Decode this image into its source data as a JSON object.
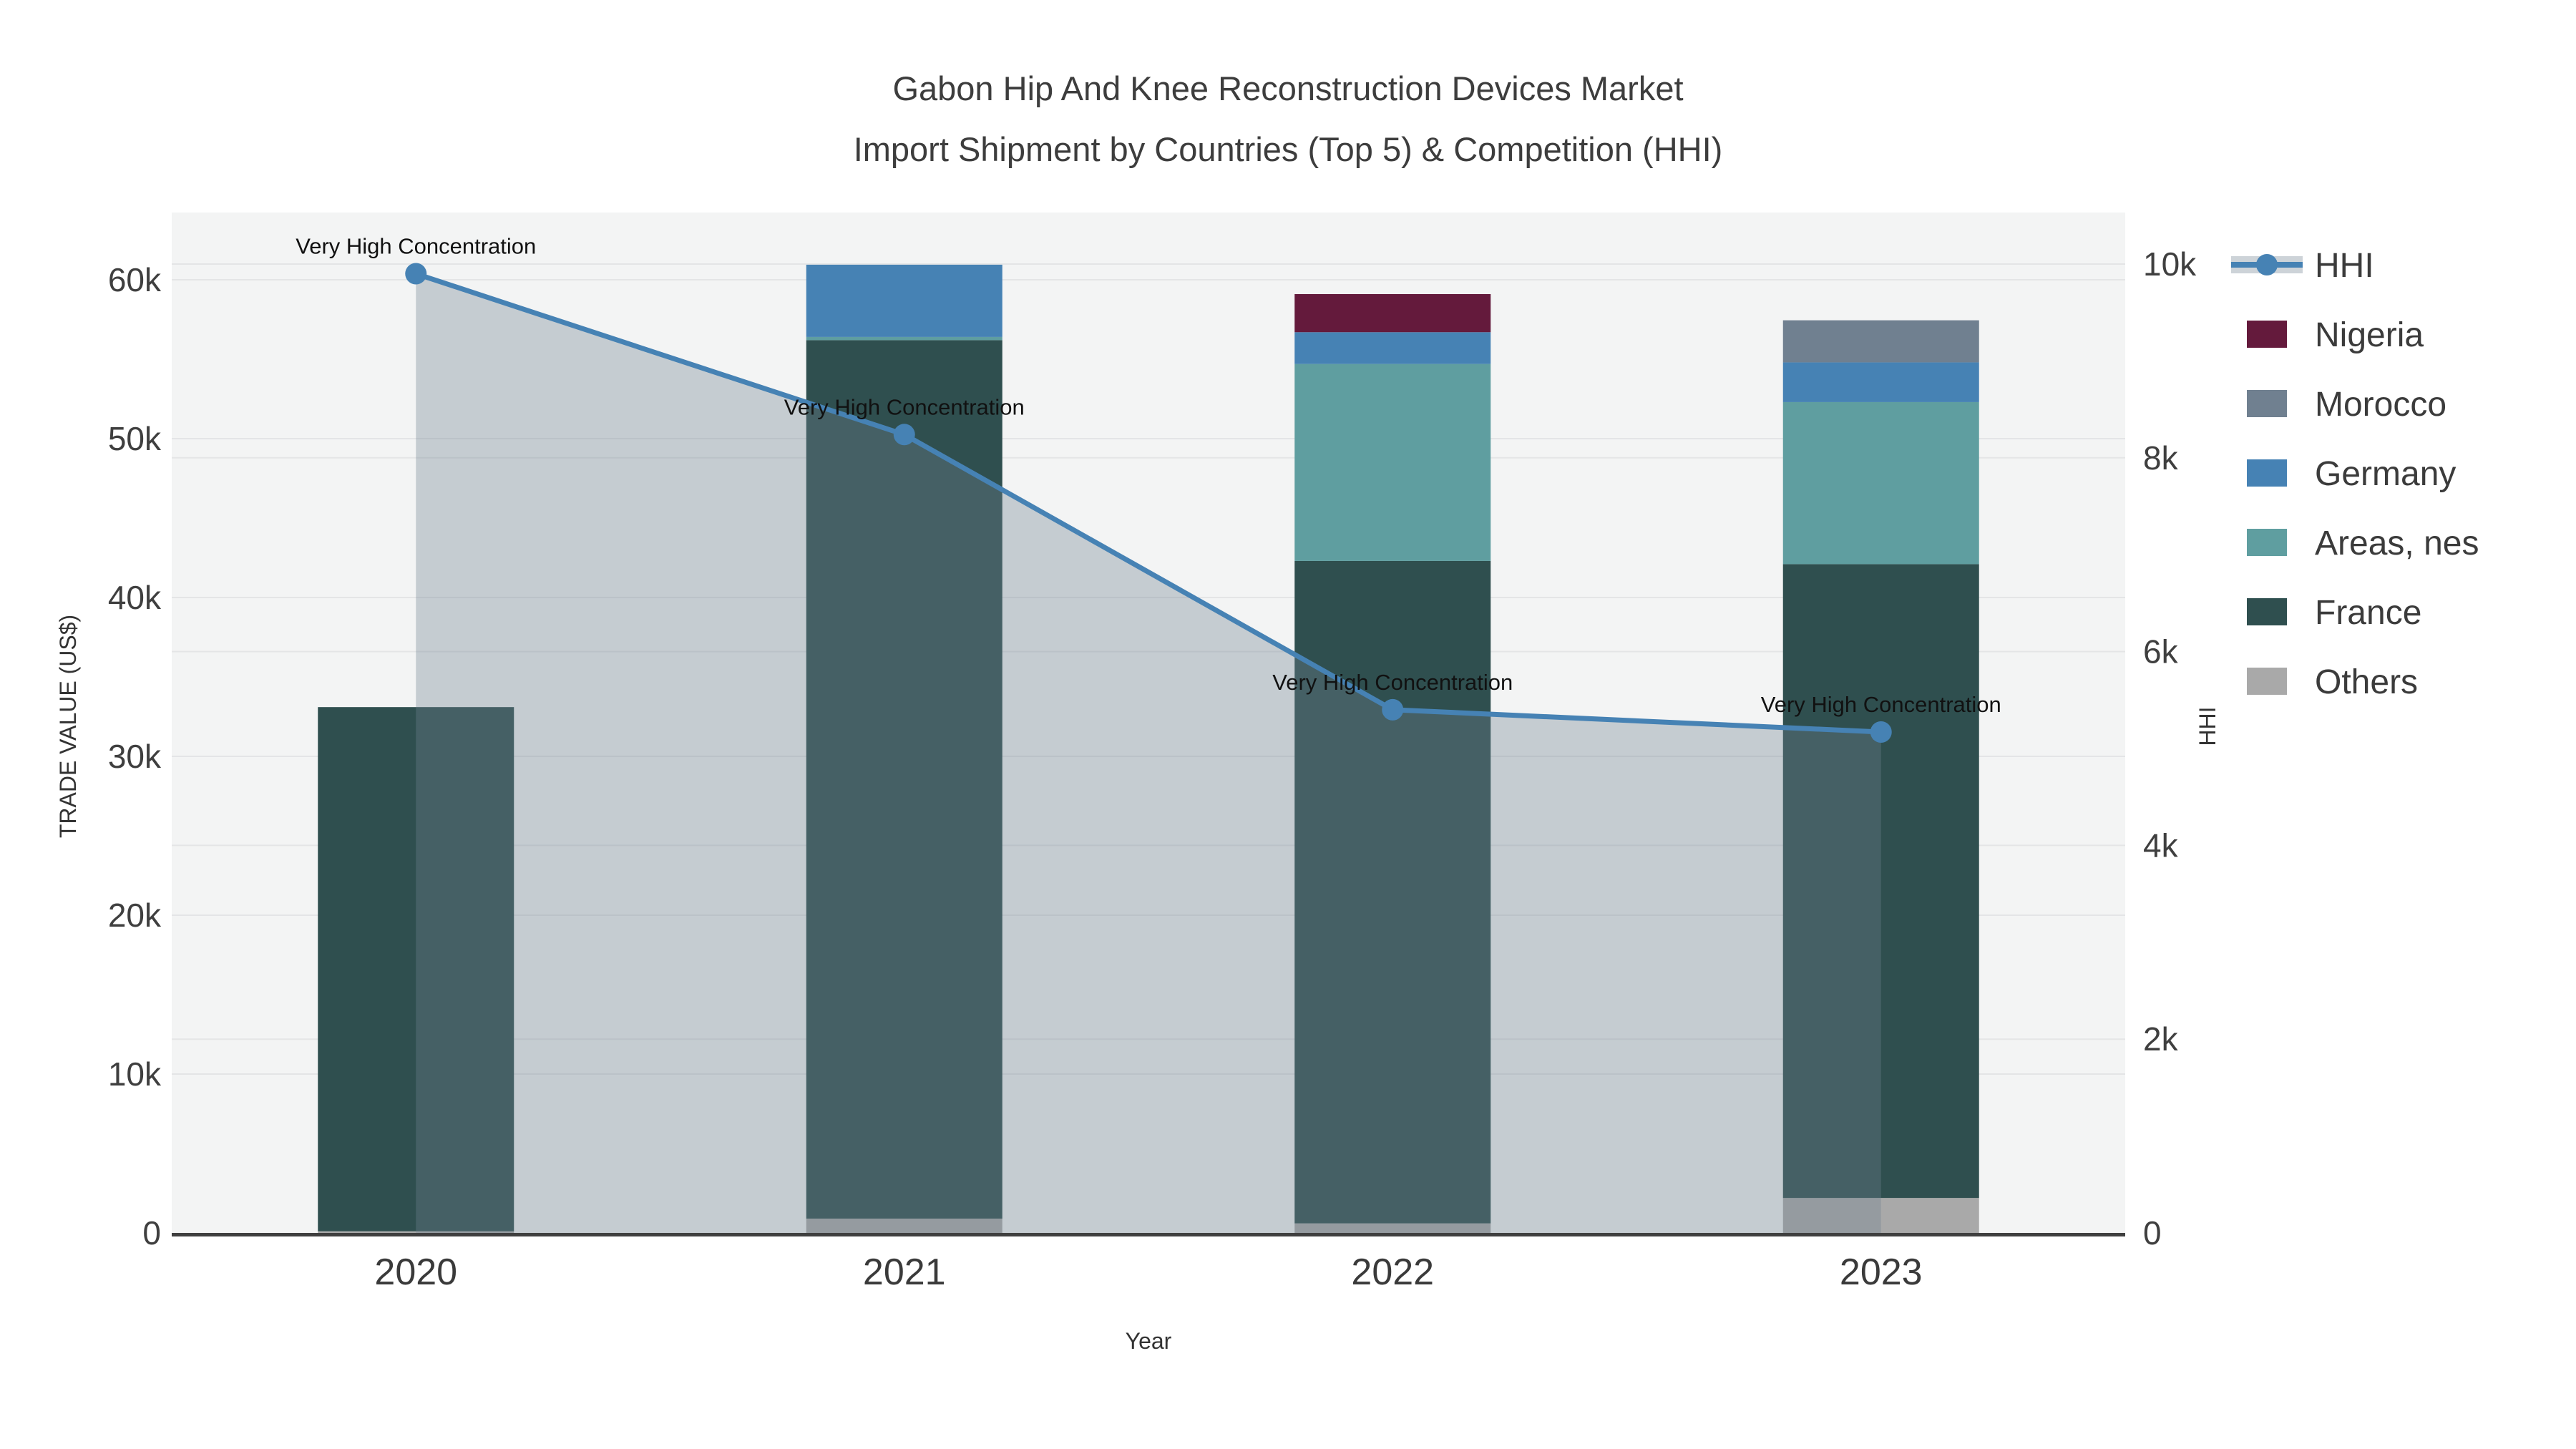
{
  "title": {
    "line1": "Gabon Hip And Knee Reconstruction Devices Market",
    "line2": "Import Shipment by Countries (Top 5) & Competition (HHI)"
  },
  "axes": {
    "left": {
      "title": "TRADE VALUE (US$)",
      "tick_labels": [
        "0",
        "10k",
        "20k",
        "30k",
        "40k",
        "50k",
        "60k"
      ],
      "tick_values": [
        0,
        10000,
        20000,
        30000,
        40000,
        50000,
        60000
      ],
      "max": 60000
    },
    "right": {
      "title": "HHI",
      "tick_labels": [
        "0",
        "2k",
        "4k",
        "6k",
        "8k",
        "10k"
      ],
      "tick_values": [
        0,
        2000,
        4000,
        6000,
        8000,
        10000
      ],
      "max": 10000
    },
    "x": {
      "title": "Year",
      "categories": [
        "2020",
        "2021",
        "2022",
        "2023"
      ]
    }
  },
  "annotation_text": "Very High Concentration",
  "colors": {
    "plot_bg": "#f3f4f4",
    "gridline": "#e4e5e6",
    "axis_line": "#3f3f3f",
    "hhi_line": "#4682B4",
    "hhi_area_fill": "rgba(112,128,144,0.35)",
    "nigeria": "#641A3C",
    "morocco": "#708090",
    "germany": "#4682B4",
    "areas_nes": "#5F9EA0",
    "france": "#2F4F4F",
    "others": "#A9A9A9"
  },
  "legend": [
    {
      "label": "HHI",
      "type": "line",
      "color": "#4682B4"
    },
    {
      "label": "Nigeria",
      "type": "box",
      "color": "#641A3C"
    },
    {
      "label": "Morocco",
      "type": "box",
      "color": "#708090"
    },
    {
      "label": "Germany",
      "type": "box",
      "color": "#4682B4"
    },
    {
      "label": "Areas, nes",
      "type": "box",
      "color": "#5F9EA0"
    },
    {
      "label": "France",
      "type": "box",
      "color": "#2F4F4F"
    },
    {
      "label": "Others",
      "type": "box",
      "color": "#A9A9A9"
    }
  ],
  "chart_data": {
    "type": "bar",
    "subtype": "stacked-bars-with-line",
    "title": "Gabon Hip And Knee Reconstruction Devices Market — Import Shipment by Countries (Top 5) & Competition (HHI)",
    "categories": [
      "2020",
      "2021",
      "2022",
      "2023"
    ],
    "xlabel": "Year",
    "ylabel_left": "TRADE VALUE (US$)",
    "ylabel_right": "HHI",
    "ylim_left": [
      0,
      60000
    ],
    "ylim_right": [
      0,
      10000
    ],
    "grid": true,
    "legend_position": "right",
    "series": [
      {
        "name": "Others",
        "axis": "left",
        "stack_order": 1,
        "color": "#A9A9A9",
        "values": [
          100,
          900,
          600,
          2200
        ]
      },
      {
        "name": "France",
        "axis": "left",
        "stack_order": 2,
        "color": "#2F4F4F",
        "values": [
          33000,
          55300,
          41700,
          39900
        ]
      },
      {
        "name": "Areas, nes",
        "axis": "left",
        "stack_order": 3,
        "color": "#5F9EA0",
        "values": [
          0,
          200,
          12400,
          10200
        ]
      },
      {
        "name": "Germany",
        "axis": "left",
        "stack_order": 4,
        "color": "#4682B4",
        "values": [
          0,
          4550,
          2000,
          2500
        ]
      },
      {
        "name": "Morocco",
        "axis": "left",
        "stack_order": 5,
        "color": "#708090",
        "values": [
          0,
          0,
          0,
          2650
        ]
      },
      {
        "name": "Nigeria",
        "axis": "left",
        "stack_order": 6,
        "color": "#641A3C",
        "values": [
          0,
          0,
          2400,
          0
        ]
      }
    ],
    "hhi": {
      "name": "HHI",
      "axis": "right",
      "type": "line-with-area-and-markers",
      "values": [
        9900,
        8240,
        5400,
        5170
      ],
      "annotations": [
        "Very High Concentration",
        "Very High Concentration",
        "Very High Concentration",
        "Very High Concentration"
      ]
    },
    "bar_totals_left_axis": [
      33100,
      60950,
      59100,
      57450
    ]
  }
}
